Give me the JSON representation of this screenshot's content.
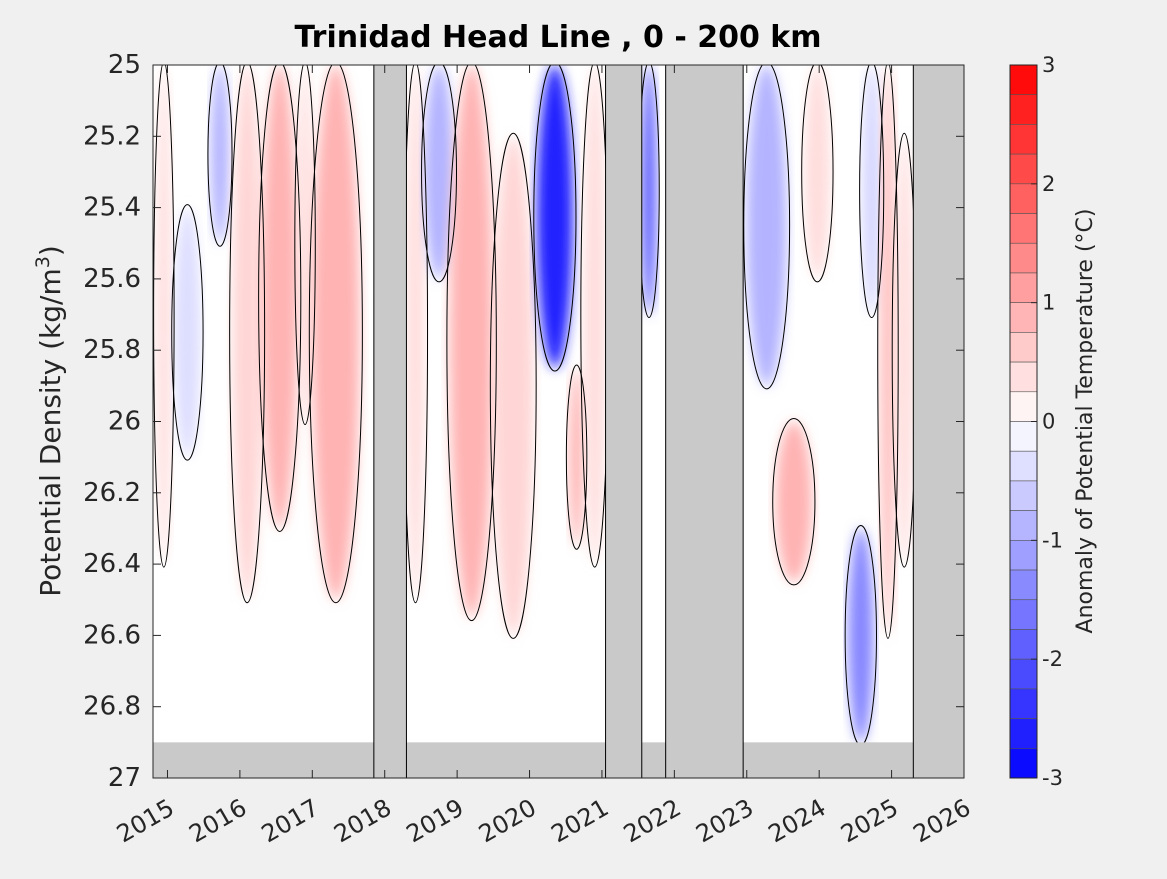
{
  "chart_data": {
    "type": "heatmap",
    "title": "Trinidad Head Line , 0 - 200 km",
    "ylabel": "Potential Density (kg/m",
    "ylabel_sup": "3",
    "ylabel_close": ")",
    "colorbar_label": "Anomaly of Potential Temperature (°C)",
    "xlim": [
      2014.8,
      2026.0
    ],
    "ylim": [
      25.0,
      27.0
    ],
    "y_reversed": true,
    "x_ticks": [
      2015,
      2016,
      2017,
      2018,
      2019,
      2020,
      2021,
      2022,
      2023,
      2024,
      2025,
      2026
    ],
    "x_tick_labels": [
      "2015",
      "2016",
      "2017",
      "2018",
      "2019",
      "2020",
      "2021",
      "2022",
      "2023",
      "2024",
      "2025",
      "2026"
    ],
    "y_ticks": [
      25.0,
      25.2,
      25.4,
      25.6,
      25.8,
      26.0,
      26.2,
      26.4,
      26.6,
      26.8,
      27.0
    ],
    "y_tick_labels": [
      "25",
      "25.2",
      "25.4",
      "25.6",
      "25.8",
      "26",
      "26.2",
      "26.4",
      "26.6",
      "26.8",
      "27"
    ],
    "colorbar_range": [
      -3,
      3
    ],
    "colorbar_step": 0.25,
    "colorbar_tick_values": [
      3,
      2,
      1,
      0,
      -1,
      -2,
      -3
    ],
    "colorbar_tick_labels": [
      "3",
      "2",
      "1",
      "0",
      "-1",
      "-2",
      "-3"
    ],
    "no_data_color": "#c9c9c9",
    "plot_background": "#ffffff",
    "colors": {
      "warm": "#ff0000",
      "cold": "#0000ff",
      "neutral": "#ffffff"
    },
    "no_data_bottom_density": 26.9,
    "no_data_periods": [
      [
        2017.85,
        2018.3
      ],
      [
        2021.05,
        2021.55
      ],
      [
        2021.88,
        2022.95
      ],
      [
        2025.3,
        2026.0
      ]
    ],
    "anomaly_features": [
      {
        "x": [
          2014.85,
          2015.05
        ],
        "y": [
          25.0,
          26.4
        ],
        "value": 0.4
      },
      {
        "x": [
          2015.1,
          2015.45
        ],
        "y": [
          25.4,
          26.1
        ],
        "value": -0.4
      },
      {
        "x": [
          2015.6,
          2015.85
        ],
        "y": [
          25.0,
          25.5
        ],
        "value": -0.9
      },
      {
        "x": [
          2015.9,
          2016.3
        ],
        "y": [
          25.0,
          26.5
        ],
        "value": 0.5
      },
      {
        "x": [
          2016.3,
          2016.8
        ],
        "y": [
          25.0,
          26.3
        ],
        "value": 0.9
      },
      {
        "x": [
          2016.8,
          2017.0
        ],
        "y": [
          25.0,
          26.0
        ],
        "value": 0.4
      },
      {
        "x": [
          2017.0,
          2017.65
        ],
        "y": [
          25.0,
          26.5
        ],
        "value": 0.9
      },
      {
        "x": [
          2018.3,
          2018.55
        ],
        "y": [
          25.0,
          26.5
        ],
        "value": 0.4
      },
      {
        "x": [
          2018.55,
          2018.95
        ],
        "y": [
          25.0,
          25.6
        ],
        "value": -0.9
      },
      {
        "x": [
          2018.9,
          2019.5
        ],
        "y": [
          25.0,
          26.55
        ],
        "value": 0.9
      },
      {
        "x": [
          2019.5,
          2020.05
        ],
        "y": [
          25.2,
          26.6
        ],
        "value": 0.5
      },
      {
        "x": [
          2020.1,
          2020.6
        ],
        "y": [
          25.0,
          25.85
        ],
        "value": -2.6
      },
      {
        "x": [
          2020.55,
          2020.75
        ],
        "y": [
          25.85,
          26.35
        ],
        "value": 0.9
      },
      {
        "x": [
          2020.75,
          2021.05
        ],
        "y": [
          25.0,
          26.4
        ],
        "value": 0.4
      },
      {
        "x": [
          2021.55,
          2021.75
        ],
        "y": [
          25.0,
          25.7
        ],
        "value": -1.9
      },
      {
        "x": [
          2023.0,
          2023.55
        ],
        "y": [
          25.0,
          25.9
        ],
        "value": -0.9
      },
      {
        "x": [
          2023.4,
          2023.9
        ],
        "y": [
          26.0,
          26.45
        ],
        "value": 0.9
      },
      {
        "x": [
          2023.8,
          2024.15
        ],
        "y": [
          25.0,
          25.6
        ],
        "value": 0.4
      },
      {
        "x": [
          2024.4,
          2024.75
        ],
        "y": [
          26.3,
          26.9
        ],
        "value": -1.4
      },
      {
        "x": [
          2024.6,
          2024.85
        ],
        "y": [
          25.0,
          25.7
        ],
        "value": -0.5
      },
      {
        "x": [
          2024.85,
          2025.05
        ],
        "y": [
          25.0,
          26.6
        ],
        "value": 0.8
      },
      {
        "x": [
          2025.05,
          2025.3
        ],
        "y": [
          25.2,
          26.4
        ],
        "value": 0.4
      }
    ]
  }
}
